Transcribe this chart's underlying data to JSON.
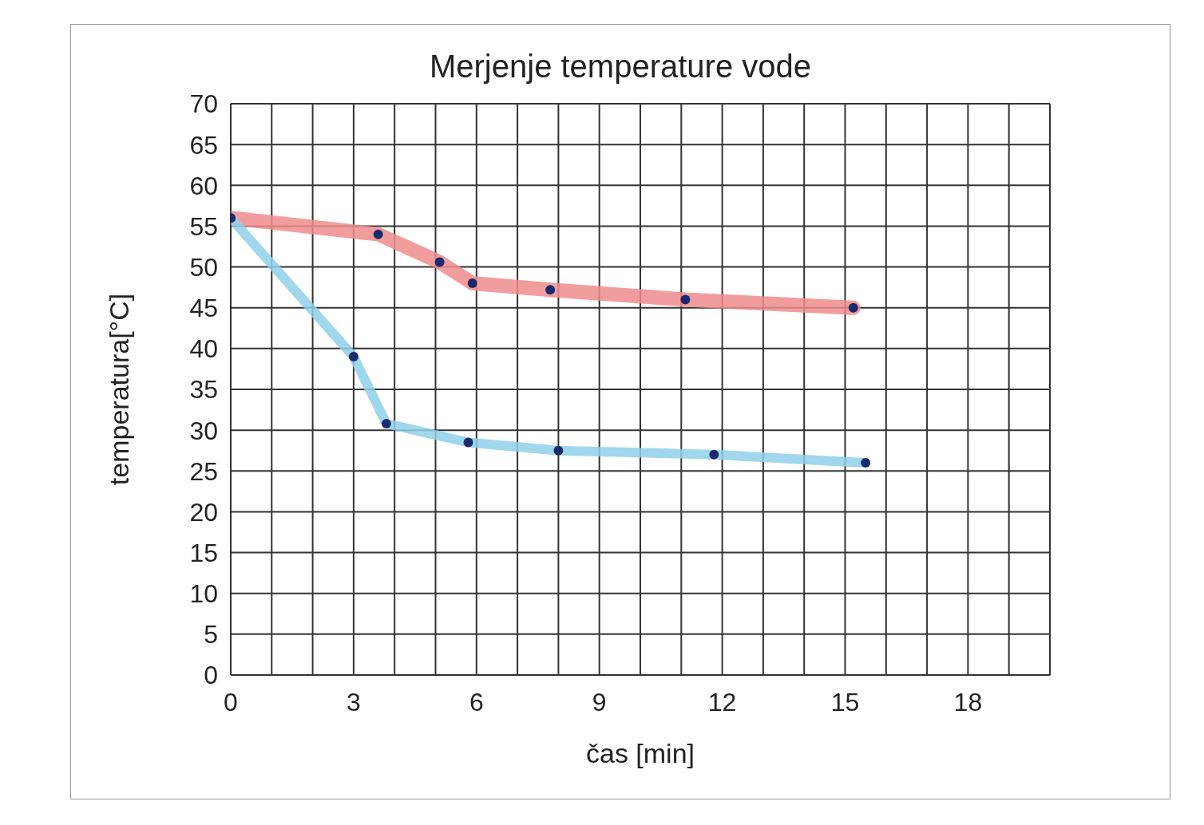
{
  "chart_data": {
    "type": "line",
    "title": "Merjenje temperature vode",
    "xlabel": "čas [min]",
    "ylabel": "temperatura[°C]",
    "xlim": [
      0,
      20
    ],
    "xticks": [
      0,
      {
        "value": 1,
        "label": null
      },
      {
        "value": 2,
        "label": null
      },
      3,
      {
        "value": 4,
        "label": null
      },
      {
        "value": 5,
        "label": null
      },
      6,
      {
        "value": 7,
        "label": null
      },
      {
        "value": 8,
        "label": null
      },
      9,
      {
        "value": 10,
        "label": null
      },
      {
        "value": 11,
        "label": null
      },
      12,
      {
        "value": 13,
        "label": null
      },
      {
        "value": 14,
        "label": null
      },
      15,
      {
        "value": 16,
        "label": null
      },
      {
        "value": 17,
        "label": null
      },
      18,
      {
        "value": 19,
        "label": null
      },
      {
        "value": 20,
        "label": null
      }
    ],
    "ylim": [
      0,
      70
    ],
    "yticks": [
      0,
      5,
      10,
      15,
      20,
      25,
      30,
      35,
      40,
      45,
      50,
      55,
      60,
      65,
      70
    ],
    "grid": true,
    "marker": "circle",
    "line_style": "solid",
    "series": [
      {
        "color": "#f08c8c",
        "x": [
          0,
          3.6,
          5.1,
          5.9,
          7.8,
          11.1,
          15.2
        ],
        "values": [
          56,
          54,
          50.6,
          48,
          47.2,
          46,
          45
        ]
      },
      {
        "color": "#8fd0ea",
        "x": [
          0,
          3,
          3.8,
          5.8,
          8,
          11.8,
          15.5
        ],
        "values": [
          56,
          39,
          30.8,
          28.5,
          27.5,
          27,
          26
        ]
      }
    ]
  }
}
